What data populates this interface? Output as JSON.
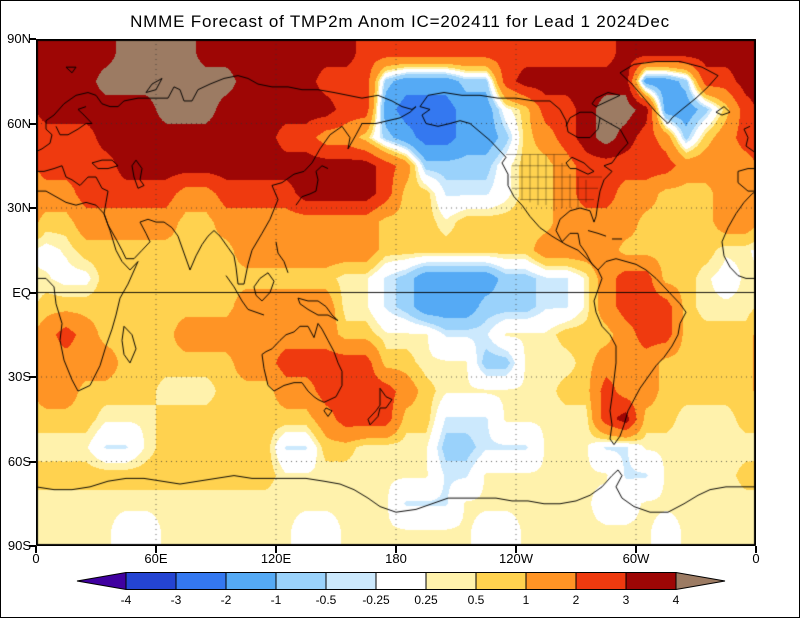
{
  "title": "NMME Forecast of TMP2m Anom IC=202411 for Lead 1 2024Dec",
  "axes": {
    "y_labels": [
      {
        "text": "90N",
        "lat": 90
      },
      {
        "text": "60N",
        "lat": 60
      },
      {
        "text": "30N",
        "lat": 30
      },
      {
        "text": "EQ",
        "lat": 0
      },
      {
        "text": "30S",
        "lat": -30
      },
      {
        "text": "60S",
        "lat": -60
      },
      {
        "text": "90S",
        "lat": -90
      }
    ],
    "x_labels": [
      {
        "text": "0",
        "lon": 0
      },
      {
        "text": "60E",
        "lon": 60
      },
      {
        "text": "120E",
        "lon": 120
      },
      {
        "text": "180",
        "lon": 180
      },
      {
        "text": "120W",
        "lon": 240
      },
      {
        "text": "60W",
        "lon": 300
      },
      {
        "text": "0",
        "lon": 360
      }
    ]
  },
  "colorbar": {
    "tick_labels": [
      "-4",
      "-3",
      "-2",
      "-1",
      "-0.5",
      "-0.25",
      "0.25",
      "0.5",
      "1",
      "2",
      "3",
      "4"
    ],
    "colors": [
      "#4000A0",
      "#2444D2",
      "#3478F0",
      "#55AAF5",
      "#9AD2FB",
      "#CCE9FD",
      "#FFFFFF",
      "#FFF2AC",
      "#FFD24F",
      "#FF9425",
      "#EF3A0F",
      "#9E0605",
      "#9C7B63"
    ]
  },
  "chart_data": {
    "type": "heatmap",
    "title": "NMME Forecast of TMP2m Anom IC=202411 for Lead 1 2024Dec",
    "projection": "equirectangular",
    "lon_range": [
      0,
      360
    ],
    "lat_range": [
      -90,
      90
    ],
    "x_tick_labels": [
      "0",
      "60E",
      "120E",
      "180",
      "120W",
      "60W",
      "0"
    ],
    "y_tick_labels": [
      "90N",
      "60N",
      "30N",
      "EQ",
      "30S",
      "60S",
      "90S"
    ],
    "levels": [
      -4,
      -3,
      -2,
      -1,
      -0.5,
      -0.25,
      0.25,
      0.5,
      1,
      2,
      3,
      4
    ],
    "palette": [
      "#4000A0",
      "#2444D2",
      "#3478F0",
      "#55AAF5",
      "#9AD2FB",
      "#CCE9FD",
      "#FFFFFF",
      "#FFF2AC",
      "#FFD24F",
      "#FF9425",
      "#EF3A0F",
      "#9E0605",
      "#9C7B63"
    ],
    "grid_lon_start": 5,
    "grid_lon_step": 10,
    "grid_lat_start": 85,
    "grid_lat_step": -10,
    "grid": [
      [
        3.5,
        3.5,
        3.5,
        3.5,
        4.5,
        4.5,
        4.5,
        4.5,
        3.5,
        3.5,
        3.5,
        3.5,
        3.5,
        3.5,
        3.5,
        3.5,
        2.5,
        2.5,
        2.5,
        2.5,
        2.5,
        2.5,
        2.5,
        2.5,
        2.5,
        2.5,
        2.5,
        2.5,
        2.5,
        3.5,
        3.5,
        3.5,
        3.5,
        3.5,
        3.5,
        3.5
      ],
      [
        3.5,
        3.5,
        3.5,
        4.5,
        4.5,
        4.5,
        4.5,
        4.5,
        4.5,
        4.5,
        3.5,
        3.5,
        3.5,
        3.5,
        2.5,
        2.5,
        2.5,
        -0.7,
        -1.5,
        -1.5,
        -1.5,
        -0.7,
        -0.7,
        2.5,
        3.5,
        3.5,
        3.5,
        3.5,
        3.5,
        3.5,
        -1.5,
        -1.5,
        -0.7,
        2.5,
        2.5,
        3.5
      ],
      [
        3.5,
        3.5,
        3.5,
        3.5,
        3.5,
        3.5,
        4.5,
        4.5,
        4.5,
        3.5,
        3.5,
        3.5,
        3.5,
        3.5,
        3.5,
        2.5,
        2.5,
        -1.5,
        -2.5,
        -2.5,
        -2.5,
        -1.5,
        -1.5,
        0.1,
        0.7,
        2.5,
        2.5,
        3.5,
        4.5,
        4.5,
        3.5,
        -1.5,
        -1.5,
        -0.7,
        0.7,
        2.5
      ],
      [
        2.5,
        2.5,
        2.5,
        3.5,
        3.5,
        3.5,
        3.5,
        3.5,
        3.5,
        3.5,
        3.5,
        3.5,
        2.5,
        2.5,
        1.5,
        1.5,
        0.7,
        -0.7,
        -1.5,
        -2.5,
        -2.5,
        -1.5,
        -1.5,
        -0.7,
        0.7,
        1.5,
        2.5,
        3.5,
        4.5,
        3.5,
        2.5,
        1.5,
        -0.7,
        0.7,
        1.5,
        2.5
      ],
      [
        2.5,
        2.5,
        2.5,
        2.5,
        3.5,
        3.5,
        3.5,
        3.5,
        3.5,
        3.5,
        3.5,
        3.5,
        3.5,
        3.5,
        3.5,
        3.5,
        3.5,
        2.5,
        1.5,
        -0.7,
        -0.7,
        -0.7,
        -0.7,
        0.1,
        0.7,
        0.7,
        1.5,
        2.5,
        2.5,
        2.5,
        2.5,
        2.5,
        1.5,
        1.5,
        1.5,
        1.5
      ],
      [
        1.5,
        1.5,
        2.5,
        2.5,
        2.5,
        2.5,
        2.5,
        1.5,
        1.5,
        2.5,
        2.5,
        2.5,
        2.5,
        3.5,
        3.5,
        3.5,
        3.5,
        2.5,
        0.7,
        0.7,
        -0.3,
        -0.3,
        -0.3,
        0.1,
        0.7,
        0.7,
        1.5,
        2.5,
        2.5,
        1.5,
        1.5,
        0.7,
        0.7,
        0.7,
        1.5,
        1.5
      ],
      [
        0.7,
        0.7,
        1.5,
        1.5,
        1.5,
        1.5,
        1.5,
        0.7,
        0.7,
        1.5,
        1.5,
        1.5,
        1.5,
        1.5,
        1.5,
        1.5,
        1.5,
        0.7,
        0.7,
        0.7,
        0.3,
        0.7,
        0.7,
        0.7,
        0.7,
        0.7,
        1.5,
        1.5,
        1.5,
        1.5,
        0.7,
        0.7,
        0.7,
        0.7,
        1.5,
        1.5
      ],
      [
        0.1,
        0.3,
        0.7,
        0.7,
        0.7,
        0.7,
        0.7,
        0.7,
        0.7,
        0.7,
        1.5,
        1.5,
        1.5,
        1.5,
        1.5,
        1.5,
        1.5,
        0.7,
        0.7,
        0.7,
        0.7,
        0.7,
        0.7,
        0.7,
        0.7,
        1.5,
        1.5,
        1.5,
        1.5,
        0.7,
        0.7,
        0.7,
        0.7,
        0.7,
        0.3,
        0.3
      ],
      [
        0.3,
        0.1,
        0.1,
        0.7,
        0.7,
        0.7,
        0.7,
        0.7,
        0.7,
        0.7,
        0.7,
        0.7,
        0.7,
        0.7,
        0.7,
        0.3,
        0.3,
        -0.3,
        -0.7,
        -1.5,
        -1.5,
        -1.5,
        -1.5,
        -0.7,
        -0.7,
        -0.3,
        -0.3,
        0.3,
        1.5,
        2.5,
        2.5,
        0.7,
        0.7,
        0.3,
        0.1,
        0.3
      ],
      [
        0.7,
        0.7,
        0.7,
        0.7,
        0.7,
        0.7,
        0.7,
        0.7,
        0.7,
        0.7,
        1.5,
        1.5,
        1.5,
        1.5,
        1.5,
        0.3,
        0.3,
        -0.3,
        -0.7,
        -1.5,
        -1.5,
        -1.5,
        -0.7,
        -0.7,
        -0.7,
        -0.3,
        -0.3,
        0.3,
        1.5,
        2.5,
        2.5,
        2.5,
        0.7,
        0.3,
        0.3,
        0.3
      ],
      [
        1.5,
        2.5,
        1.5,
        0.7,
        0.7,
        0.7,
        0.7,
        1.5,
        1.5,
        1.5,
        1.5,
        1.5,
        1.5,
        1.5,
        1.5,
        0.7,
        0.7,
        0.3,
        0.3,
        0.3,
        -0.3,
        -0.3,
        -0.3,
        0.3,
        0.3,
        0.3,
        0.7,
        0.7,
        0.7,
        1.5,
        2.5,
        2.5,
        0.7,
        0.7,
        0.7,
        0.7
      ],
      [
        1.5,
        1.5,
        1.5,
        1.5,
        0.7,
        0.7,
        0.7,
        0.7,
        0.7,
        0.7,
        1.5,
        1.5,
        2.5,
        2.5,
        2.5,
        2.5,
        2.5,
        0.7,
        0.7,
        0.3,
        0.3,
        0.3,
        -0.7,
        -0.7,
        0.3,
        0.3,
        0.3,
        0.7,
        1.5,
        1.5,
        1.5,
        0.7,
        0.7,
        0.7,
        0.7,
        0.7
      ],
      [
        1.5,
        1.5,
        0.7,
        0.7,
        0.7,
        0.7,
        0.3,
        0.3,
        0.3,
        0.7,
        0.7,
        0.7,
        1.5,
        1.5,
        2.5,
        2.5,
        2.5,
        2.5,
        1.5,
        0.7,
        0.3,
        0.3,
        0.3,
        0.3,
        0.3,
        0.3,
        0.7,
        0.7,
        2.5,
        1.5,
        1.5,
        0.7,
        0.7,
        0.7,
        0.7,
        0.7
      ],
      [
        0.7,
        0.7,
        0.7,
        0.3,
        0.3,
        0.3,
        0.7,
        0.7,
        0.7,
        0.7,
        0.7,
        0.7,
        0.7,
        0.7,
        1.5,
        2.5,
        2.5,
        2.5,
        0.7,
        0.7,
        -0.3,
        -0.3,
        -0.3,
        0.3,
        0.3,
        0.3,
        0.3,
        0.3,
        2.5,
        3.5,
        0.7,
        0.7,
        0.3,
        0.3,
        0.3,
        0.7
      ],
      [
        0.3,
        0.3,
        0.3,
        -0.3,
        -0.3,
        0.3,
        0.7,
        0.7,
        0.7,
        0.7,
        0.7,
        0.7,
        -0.3,
        -0.3,
        0.7,
        0.7,
        0.3,
        0.3,
        0.3,
        0.3,
        -0.7,
        -0.7,
        -0.3,
        -0.3,
        -0.3,
        0.3,
        0.3,
        0.3,
        -0.3,
        -0.3,
        0.3,
        0.3,
        0.3,
        0.3,
        0.3,
        0.3
      ],
      [
        0.7,
        0.7,
        0.7,
        0.7,
        0.7,
        0.7,
        0.7,
        0.7,
        0.7,
        0.7,
        0.7,
        0.7,
        0.3,
        0.3,
        0.3,
        0.3,
        0.3,
        0.3,
        0.3,
        0.3,
        -0.3,
        -0.3,
        0.3,
        0.3,
        0.3,
        0.3,
        0.3,
        0.3,
        0.3,
        -0.3,
        -0.3,
        0.3,
        0.3,
        0.3,
        0.3,
        0.7
      ],
      [
        0.3,
        0.3,
        0.3,
        0.3,
        0.3,
        0.3,
        0.3,
        0.3,
        0.3,
        0.3,
        0.3,
        0.3,
        0.3,
        0.3,
        0.3,
        0.3,
        0.3,
        0.3,
        -0.3,
        -0.3,
        -0.3,
        0.3,
        0.3,
        0.3,
        0.3,
        0.3,
        0.3,
        0.3,
        0.1,
        0.1,
        0.3,
        0.3,
        0.3,
        0.3,
        0.3,
        0.3
      ],
      [
        0.3,
        0.3,
        0.3,
        0.3,
        0.1,
        0.1,
        0.3,
        0.3,
        0.3,
        0.3,
        0.3,
        0.3,
        0.3,
        0.1,
        0.1,
        0.3,
        0.3,
        0.3,
        0.3,
        0.3,
        0.3,
        0.3,
        0.1,
        0.1,
        0.3,
        0.3,
        0.3,
        0.3,
        0.3,
        0.3,
        0.3,
        0.1,
        0.3,
        0.3,
        0.3,
        0.3
      ]
    ]
  }
}
